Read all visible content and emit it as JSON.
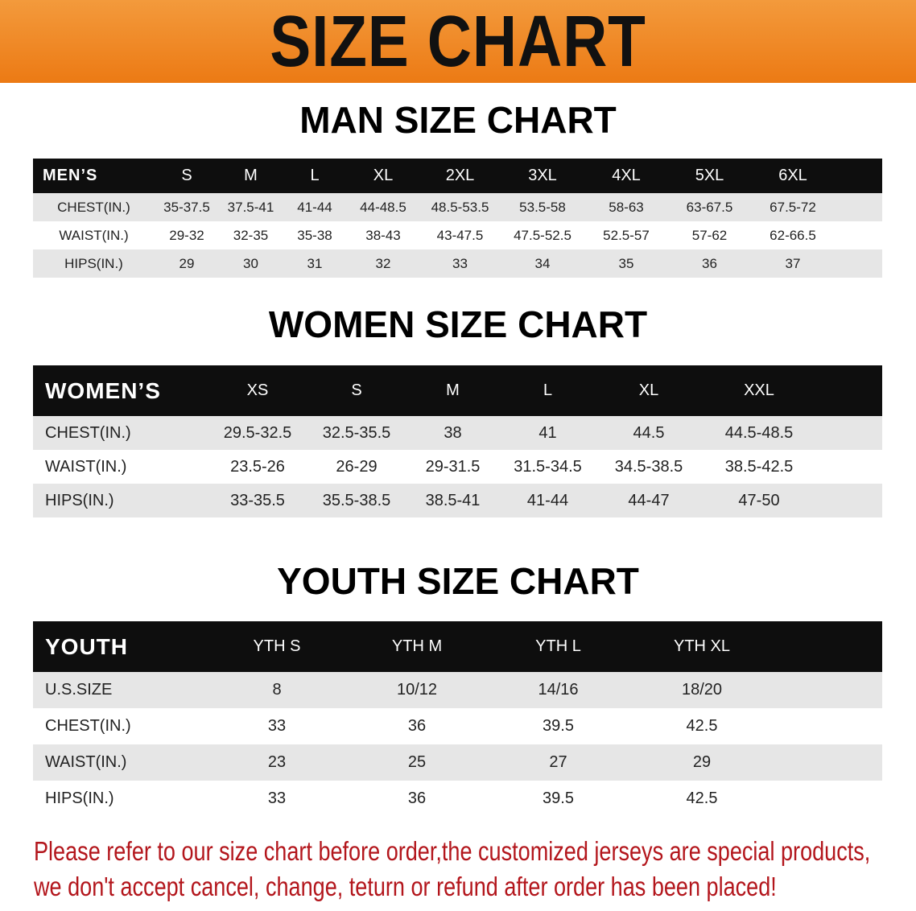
{
  "banner": {
    "title": "SIZE CHART",
    "color": "#ec7a14"
  },
  "men": {
    "title": "MAN SIZE CHART",
    "header": [
      "MEN’S",
      "S",
      "M",
      "L",
      "XL",
      "2XL",
      "3XL",
      "4XL",
      "5XL",
      "6XL"
    ],
    "rows": [
      [
        "CHEST(IN.)",
        "35-37.5",
        "37.5-41",
        "41-44",
        "44-48.5",
        "48.5-53.5",
        "53.5-58",
        "58-63",
        "63-67.5",
        "67.5-72"
      ],
      [
        "WAIST(IN.)",
        "29-32",
        "32-35",
        "35-38",
        "38-43",
        "43-47.5",
        "47.5-52.5",
        "52.5-57",
        "57-62",
        "62-66.5"
      ],
      [
        "HIPS(IN.)",
        "29",
        "30",
        "31",
        "32",
        "33",
        "34",
        "35",
        "36",
        "37"
      ]
    ]
  },
  "women": {
    "title": "WOMEN SIZE CHART",
    "header": [
      "WOMEN’S",
      "XS",
      "S",
      "M",
      "L",
      "XL",
      "XXL"
    ],
    "rows": [
      [
        "CHEST(IN.)",
        "29.5-32.5",
        "32.5-35.5",
        "38",
        "41",
        "44.5",
        "44.5-48.5"
      ],
      [
        "WAIST(IN.)",
        "23.5-26",
        "26-29",
        "29-31.5",
        "31.5-34.5",
        "34.5-38.5",
        "38.5-42.5"
      ],
      [
        "HIPS(IN.)",
        "33-35.5",
        "35.5-38.5",
        "38.5-41",
        "41-44",
        "44-47",
        "47-50"
      ]
    ]
  },
  "youth": {
    "title": "YOUTH SIZE CHART",
    "header": [
      "YOUTH",
      "YTH S",
      "YTH M",
      "YTH L",
      "YTH XL"
    ],
    "rows": [
      [
        "U.S.SIZE",
        "8",
        "10/12",
        "14/16",
        "18/20"
      ],
      [
        "CHEST(IN.)",
        "33",
        "36",
        "39.5",
        "42.5"
      ],
      [
        "WAIST(IN.)",
        "23",
        "25",
        "27",
        "29"
      ],
      [
        "HIPS(IN.)",
        "33",
        "36",
        "39.5",
        "42.5"
      ]
    ]
  },
  "notice": {
    "line1": "Please refer to our size chart before order,the customized jerseys are special products,",
    "line2": "we don't accept cancel, change, teturn or refund after order has been placed!",
    "color": "#b3161c"
  }
}
